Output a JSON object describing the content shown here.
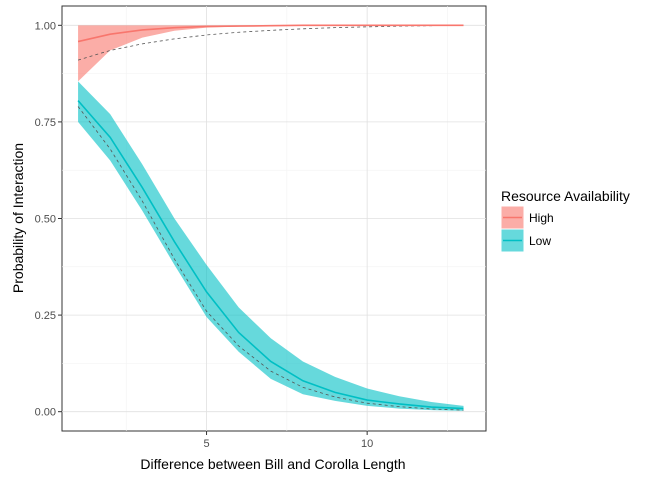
{
  "chart_data": {
    "type": "line",
    "xlabel": "Difference between Bill and Corolla Length",
    "ylabel": "Probability of Interaction",
    "xlim": [
      0.5,
      13.7
    ],
    "ylim": [
      -0.05,
      1.05
    ],
    "x_ticks": [
      5,
      10
    ],
    "x_tick_labels": [
      "5",
      "10"
    ],
    "y_ticks": [
      0,
      0.25,
      0.5,
      0.75,
      1
    ],
    "y_tick_labels": [
      "0.00",
      "0.25",
      "0.50",
      "0.75",
      "1.00"
    ],
    "grid": true,
    "legend": {
      "title": "Resource Availability",
      "position": "right"
    },
    "series": [
      {
        "name": "High",
        "color": "#F8766D",
        "x": [
          1,
          2,
          3,
          4,
          5,
          6,
          7,
          8,
          9,
          10,
          11,
          12,
          13
        ],
        "y": [
          0.958,
          0.977,
          0.988,
          0.994,
          0.997,
          0.998,
          0.999,
          1.0,
          1.0,
          1.0,
          1.0,
          1.0,
          1.0
        ],
        "lower": [
          0.855,
          0.935,
          0.968,
          0.986,
          0.994,
          0.997,
          0.999,
          1.0,
          1.0,
          1.0,
          1.0,
          1.0,
          1.0
        ],
        "upper": [
          1.0,
          1.0,
          1.0,
          1.0,
          1.0,
          1.0,
          1.0,
          1.0,
          1.0,
          1.0,
          1.0,
          1.0,
          1.0
        ],
        "reference": [
          0.91,
          0.935,
          0.952,
          0.965,
          0.975,
          0.982,
          0.987,
          0.991,
          0.994,
          0.996,
          0.998,
          0.999,
          1.0
        ]
      },
      {
        "name": "Low",
        "color": "#00BFC4",
        "x": [
          1,
          2,
          3,
          4,
          5,
          6,
          7,
          8,
          9,
          10,
          11,
          12,
          13
        ],
        "y": [
          0.805,
          0.71,
          0.58,
          0.44,
          0.31,
          0.205,
          0.13,
          0.08,
          0.05,
          0.03,
          0.02,
          0.012,
          0.008
        ],
        "lower": [
          0.75,
          0.65,
          0.52,
          0.38,
          0.245,
          0.155,
          0.085,
          0.045,
          0.028,
          0.015,
          0.008,
          0.004,
          0.002
        ],
        "upper": [
          0.855,
          0.77,
          0.64,
          0.5,
          0.38,
          0.27,
          0.19,
          0.13,
          0.09,
          0.06,
          0.04,
          0.025,
          0.015
        ],
        "reference": [
          0.79,
          0.68,
          0.545,
          0.395,
          0.26,
          0.17,
          0.105,
          0.063,
          0.038,
          0.022,
          0.013,
          0.007,
          0.004
        ]
      }
    ]
  }
}
